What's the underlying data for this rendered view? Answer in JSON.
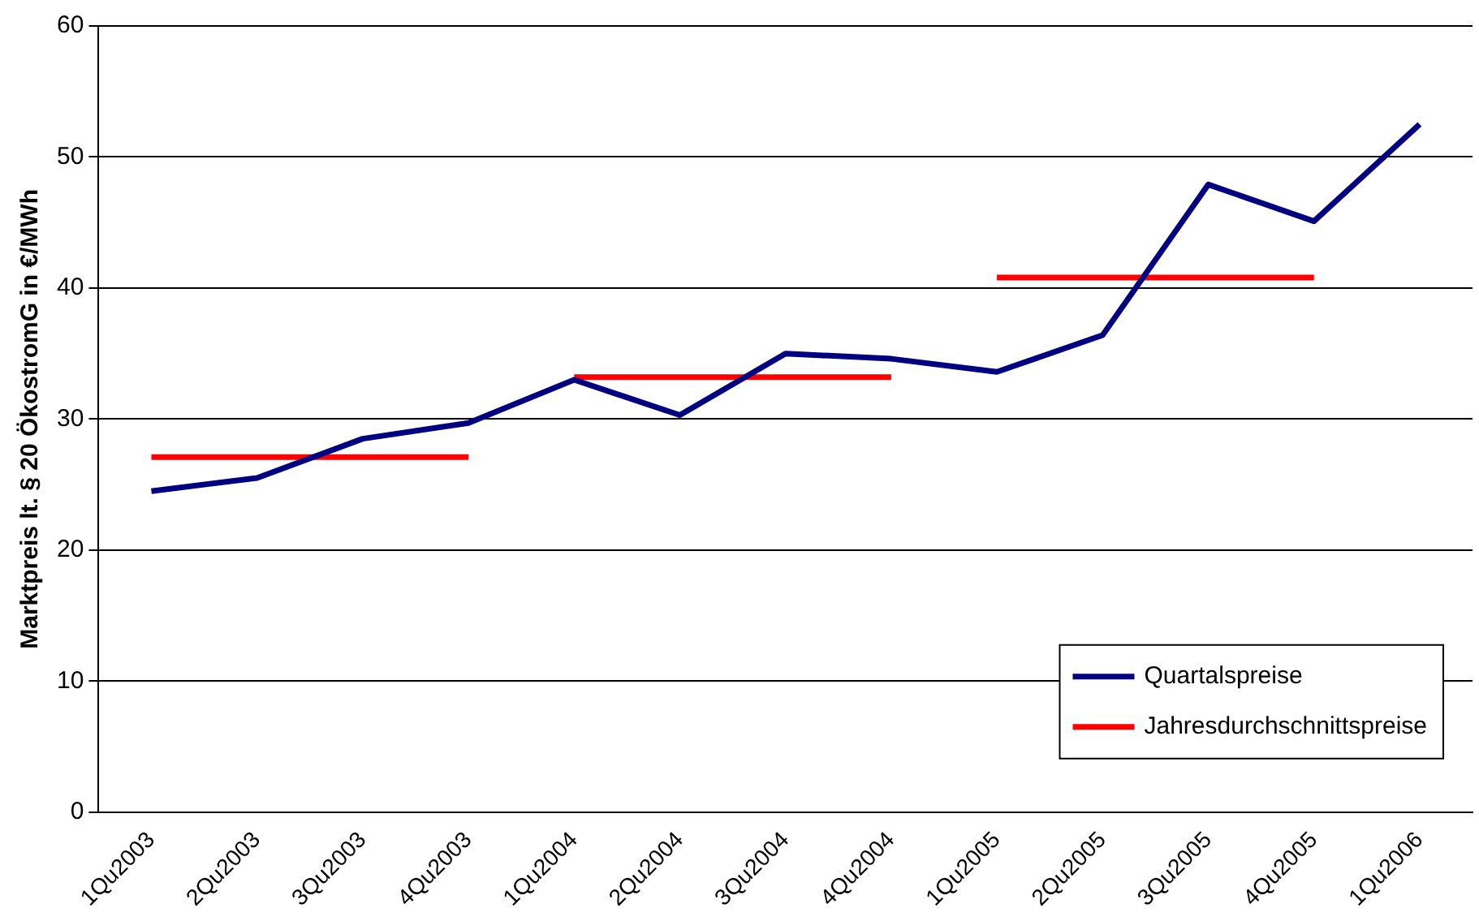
{
  "chart_data": {
    "type": "line",
    "ylabel": "Marktpreis lt. § 20 ÖkostromG in €/MWh",
    "categories": [
      "1Qu2003",
      "2Qu2003",
      "3Qu2003",
      "4Qu2003",
      "1Qu2004",
      "2Qu2004",
      "3Qu2004",
      "4Qu2004",
      "1Qu2005",
      "2Qu2005",
      "3Qu2005",
      "4Qu2005",
      "1Qu2006"
    ],
    "series": [
      {
        "name": "Quartalspreise",
        "color": "#000080",
        "values": [
          24.5,
          25.5,
          28.5,
          29.7,
          33.0,
          30.3,
          35.0,
          34.6,
          33.6,
          36.4,
          47.9,
          45.1,
          52.5
        ]
      },
      {
        "name": "Jahresdurchschnittspreise",
        "color": "#ff0000",
        "values": [
          27.1,
          27.1,
          27.1,
          27.1,
          33.2,
          33.2,
          33.2,
          33.2,
          40.8,
          40.8,
          40.8,
          40.8,
          null
        ]
      }
    ],
    "ylim": [
      0,
      60
    ],
    "yticks": [
      0,
      10,
      20,
      30,
      40,
      50,
      60
    ],
    "grid": "y",
    "legend": "bottom right",
    "marker": "none",
    "line_style": "solid"
  }
}
